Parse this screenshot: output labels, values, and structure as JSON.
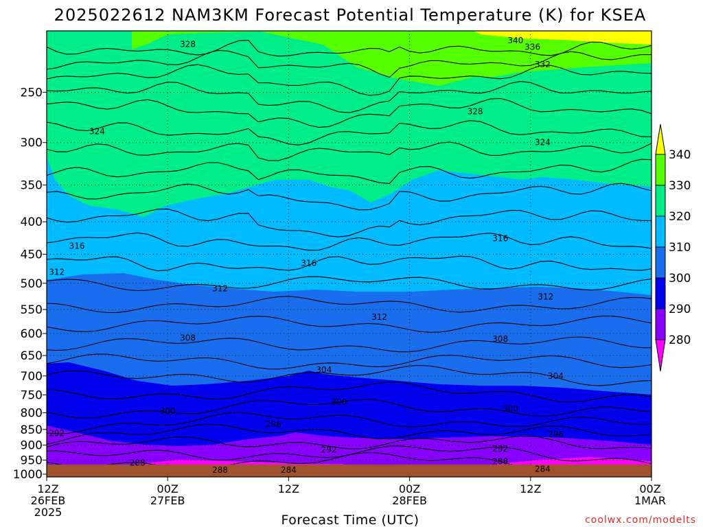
{
  "chart_data": {
    "type": "heatmap",
    "title": "2025022612 NAM3KM Forecast Potential Temperature (K) for KSEA",
    "xlabel": "Forecast Time (UTC)",
    "ylabel": "",
    "y_scale": "log-pressure",
    "y_axis_ticks": [
      250,
      300,
      350,
      400,
      450,
      500,
      550,
      600,
      650,
      700,
      750,
      800,
      850,
      900,
      950,
      1000
    ],
    "y_range": [
      1010,
      200
    ],
    "x_ticks": [
      {
        "hour": 0,
        "lines": [
          "12Z",
          "26FEB",
          "2025"
        ]
      },
      {
        "hour": 12,
        "lines": [
          "00Z",
          "27FEB"
        ]
      },
      {
        "hour": 24,
        "lines": [
          "12Z"
        ]
      },
      {
        "hour": 36,
        "lines": [
          "00Z",
          "28FEB"
        ]
      },
      {
        "hour": 48,
        "lines": [
          "12Z"
        ]
      },
      {
        "hour": 60,
        "lines": [
          "00Z",
          "1MAR"
        ]
      }
    ],
    "x_range_hours": [
      0,
      60
    ],
    "grid": true,
    "colorbar": {
      "labels": [
        "340",
        "330",
        "320",
        "310",
        "300",
        "290",
        "280"
      ],
      "colors": [
        "#ffff00",
        "#55ff00",
        "#00ee88",
        "#00bbff",
        "#1a6eee",
        "#0000ee",
        "#8800ff",
        "#ff00ff"
      ]
    },
    "contour_labels": [
      {
        "text": "340",
        "hour": 46.5,
        "p": 207
      },
      {
        "text": "336",
        "hour": 48.2,
        "p": 212
      },
      {
        "text": "332",
        "hour": 49.2,
        "p": 226
      },
      {
        "text": "328",
        "hour": 14.0,
        "p": 210
      },
      {
        "text": "328",
        "hour": 42.5,
        "p": 268
      },
      {
        "text": "324",
        "hour": 5.0,
        "p": 288
      },
      {
        "text": "324",
        "hour": 49.2,
        "p": 300
      },
      {
        "text": "316",
        "hour": 3.0,
        "p": 437
      },
      {
        "text": "316",
        "hour": 26.0,
        "p": 465
      },
      {
        "text": "316",
        "hour": 45.0,
        "p": 425
      },
      {
        "text": "312",
        "hour": 1.0,
        "p": 480
      },
      {
        "text": "312",
        "hour": 17.2,
        "p": 510
      },
      {
        "text": "312",
        "hour": 33.0,
        "p": 565
      },
      {
        "text": "312",
        "hour": 49.5,
        "p": 525
      },
      {
        "text": "308",
        "hour": 14.0,
        "p": 610
      },
      {
        "text": "308",
        "hour": 45.0,
        "p": 612
      },
      {
        "text": "304",
        "hour": 27.5,
        "p": 685
      },
      {
        "text": "304",
        "hour": 50.5,
        "p": 700
      },
      {
        "text": "300",
        "hour": 12.0,
        "p": 795
      },
      {
        "text": "300",
        "hour": 29.0,
        "p": 770
      },
      {
        "text": "300",
        "hour": 46.0,
        "p": 788
      },
      {
        "text": "296",
        "hour": 22.5,
        "p": 835
      },
      {
        "text": "296",
        "hour": 50.5,
        "p": 865
      },
      {
        "text": "292",
        "hour": 1.0,
        "p": 862
      },
      {
        "text": "292",
        "hour": 28.0,
        "p": 915
      },
      {
        "text": "292",
        "hour": 45.0,
        "p": 912
      },
      {
        "text": "288",
        "hour": 9.0,
        "p": 960
      },
      {
        "text": "288",
        "hour": 45.0,
        "p": 955
      },
      {
        "text": "288",
        "hour": 17.2,
        "p": 985
      },
      {
        "text": "284",
        "hour": 24.0,
        "p": 985
      },
      {
        "text": "284",
        "hour": 49.2,
        "p": 982
      }
    ]
  },
  "credit": "coolwx.com/modelts"
}
